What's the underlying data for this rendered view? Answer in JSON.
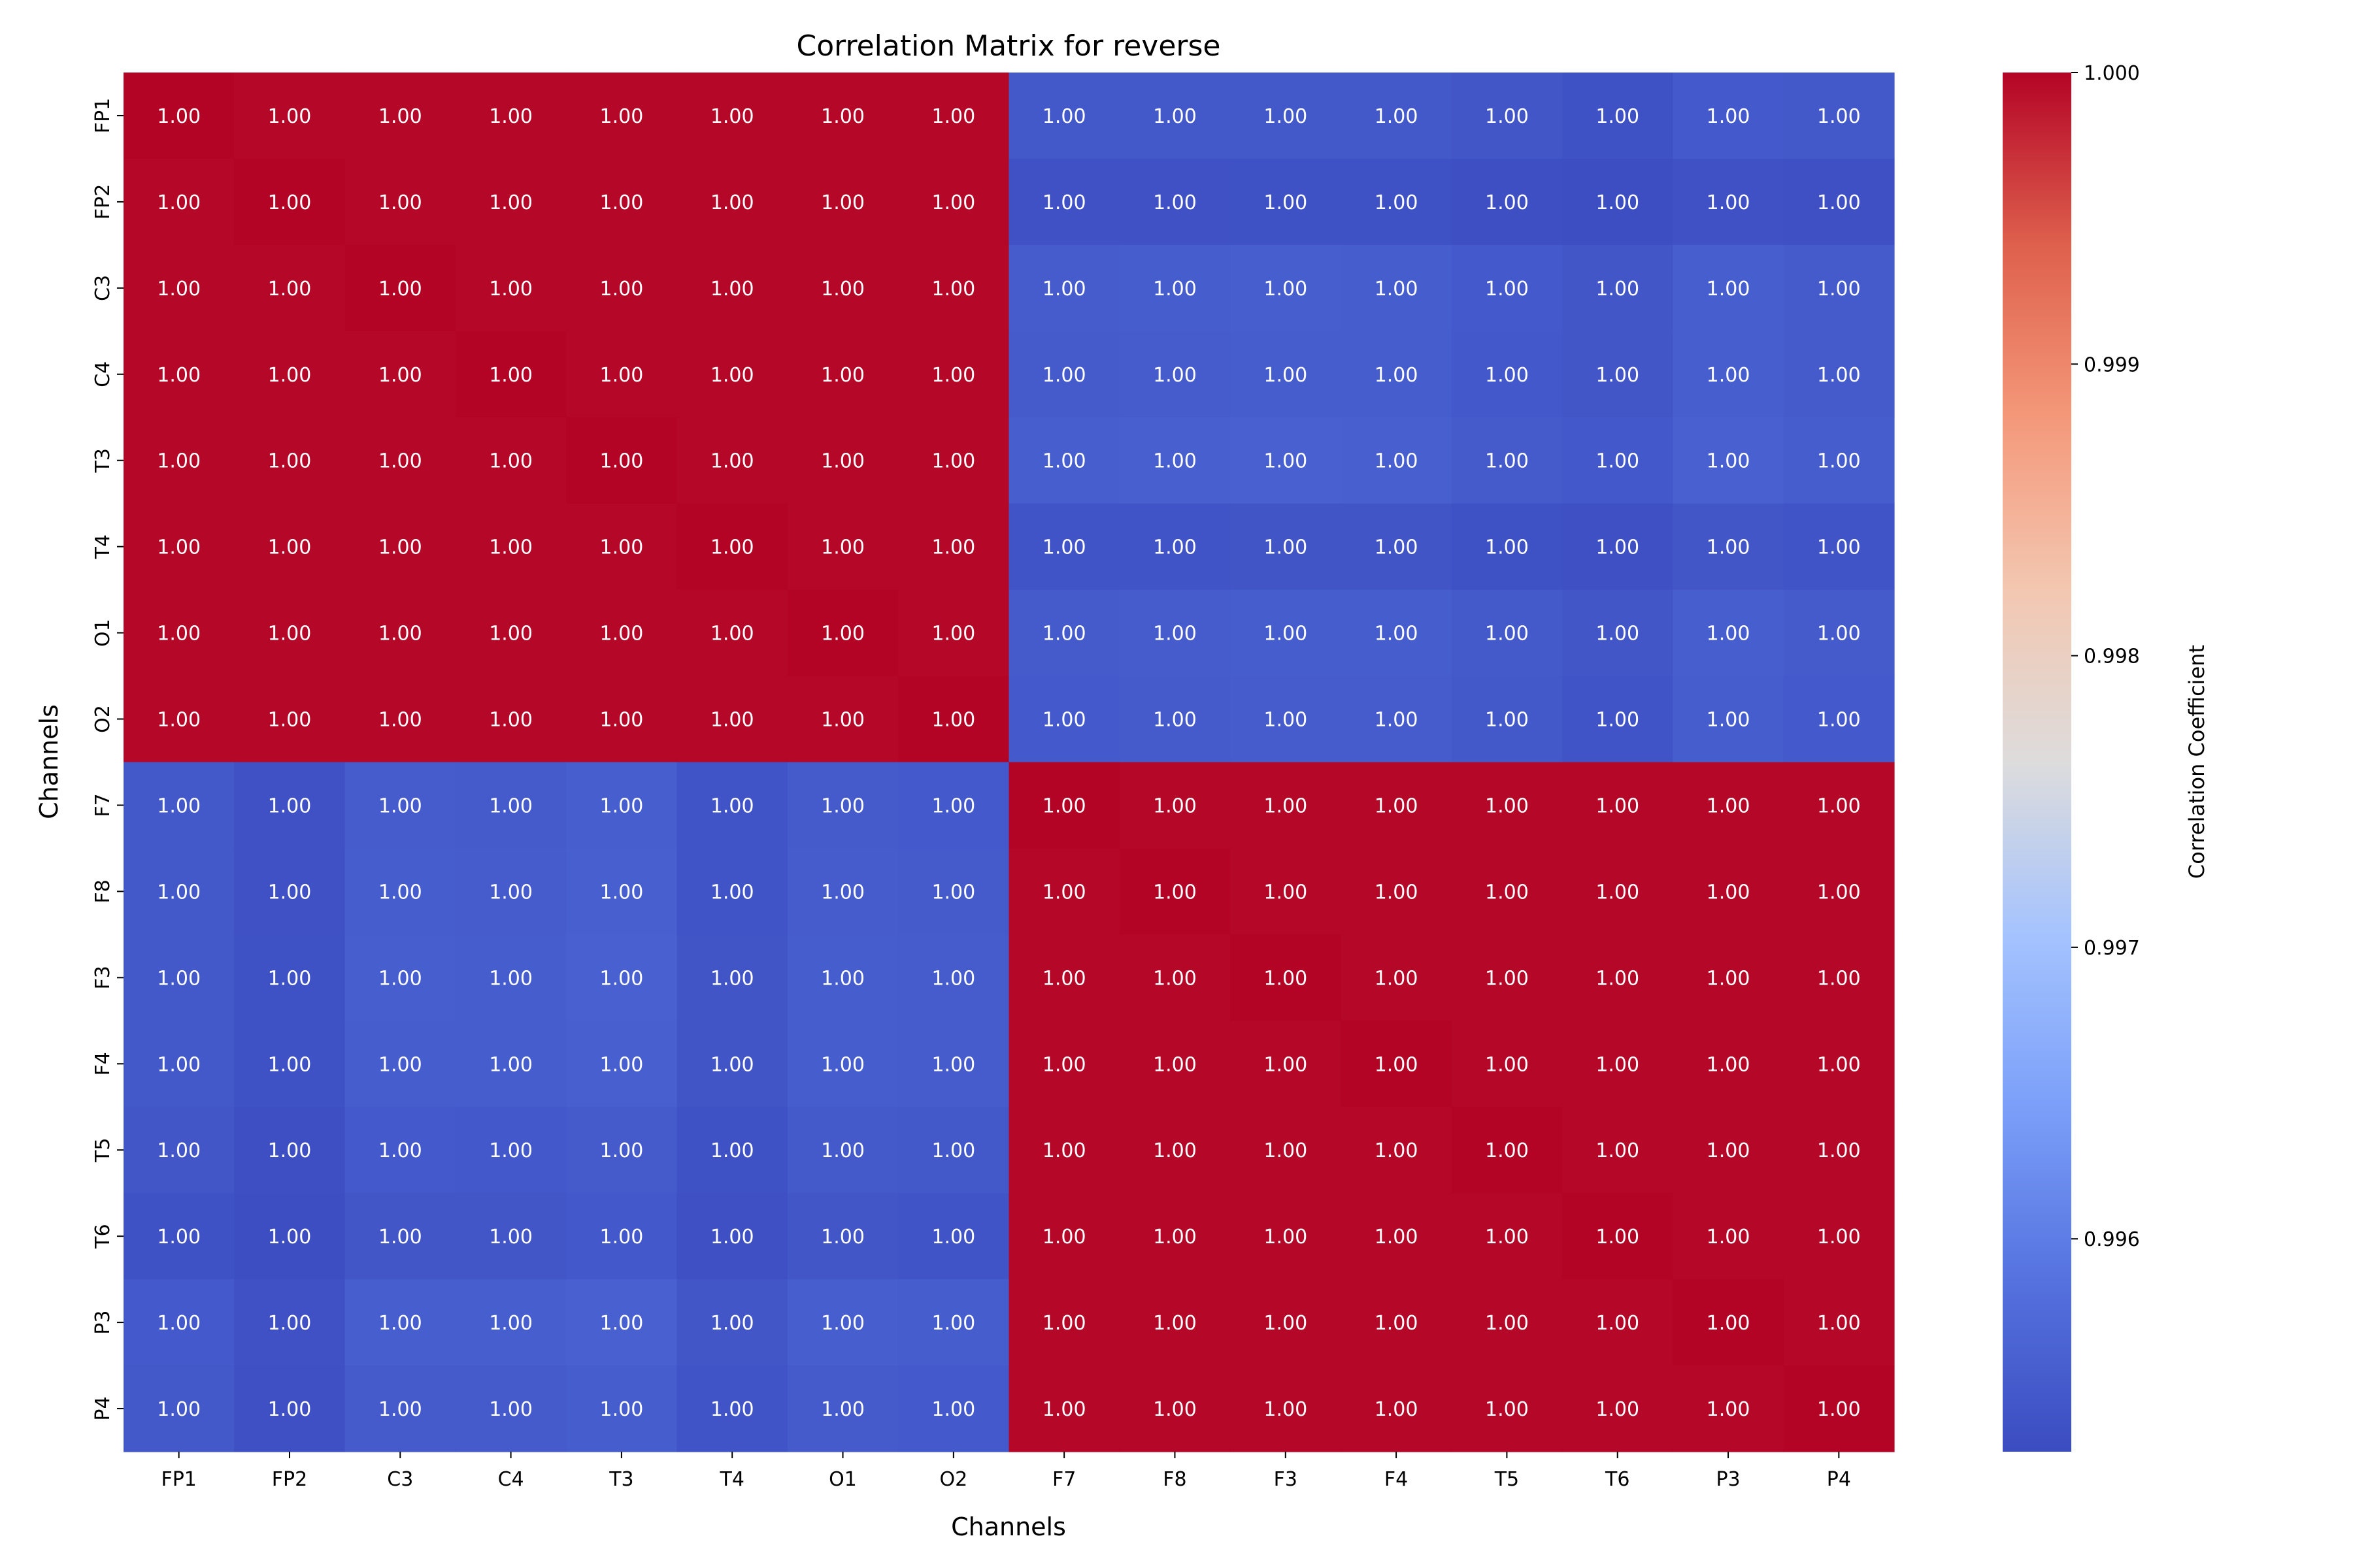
{
  "chart_data": {
    "type": "heatmap",
    "title": "Correlation Matrix for reverse",
    "xlabel": "Channels",
    "ylabel": "Channels",
    "labels": [
      "FP1",
      "FP2",
      "C3",
      "C4",
      "T3",
      "T4",
      "O1",
      "O2",
      "F7",
      "F8",
      "F3",
      "F4",
      "T5",
      "T6",
      "P3",
      "P4"
    ],
    "annotation_format": "2 decimals",
    "colormap": "coolwarm",
    "colorbar": {
      "label": "Correlation Coefficient",
      "range": [
        0.99527,
        1.0
      ],
      "ticks": [
        "1.000",
        "0.999",
        "0.998",
        "0.997",
        "0.996"
      ]
    },
    "cross_block": [
      [
        0.99545,
        0.99545,
        0.99545,
        0.99545,
        0.99542,
        0.99537,
        0.99548,
        0.99545
      ],
      [
        0.99535,
        0.99535,
        0.99537,
        0.99537,
        0.99532,
        0.9953,
        0.99535,
        0.99533
      ],
      [
        0.99552,
        0.99553,
        0.99555,
        0.99553,
        0.99548,
        0.99543,
        0.99555,
        0.9955
      ],
      [
        0.9955,
        0.99552,
        0.99553,
        0.99553,
        0.99546,
        0.99542,
        0.99555,
        0.9955
      ],
      [
        0.99555,
        0.99556,
        0.99558,
        0.99556,
        0.9955,
        0.99546,
        0.99558,
        0.99553
      ],
      [
        0.9954,
        0.9954,
        0.99541,
        0.99541,
        0.99537,
        0.99533,
        0.99543,
        0.9954
      ],
      [
        0.9955,
        0.99552,
        0.99553,
        0.99553,
        0.99547,
        0.99543,
        0.99555,
        0.9955
      ],
      [
        0.99548,
        0.9955,
        0.99552,
        0.99552,
        0.99545,
        0.9954,
        0.99553,
        0.99548
      ]
    ],
    "within_group_value": 0.99998
  }
}
